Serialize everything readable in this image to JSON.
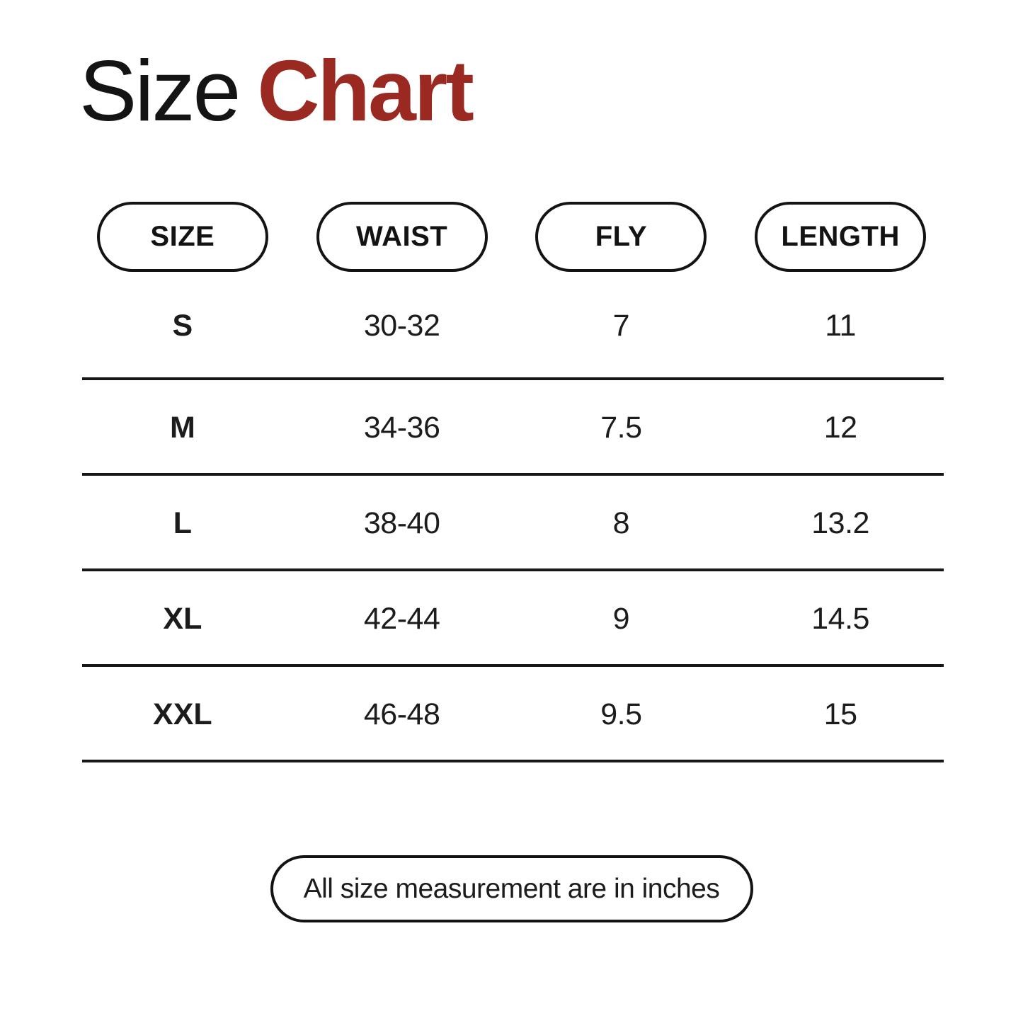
{
  "title": {
    "word_regular": "Size",
    "word_accent": "Chart"
  },
  "colors": {
    "accent_red": "#9a2a21",
    "text": "#141414",
    "line": "#161616",
    "background": "#ffffff"
  },
  "chart_data": {
    "type": "table",
    "title": "Size Chart",
    "columns": [
      "SIZE",
      "WAIST",
      "FLY",
      "LENGTH"
    ],
    "rows": [
      [
        "S",
        "30-32",
        "7",
        "11"
      ],
      [
        "M",
        "34-36",
        "7.5",
        "12"
      ],
      [
        "L",
        "38-40",
        "8",
        "13.2"
      ],
      [
        "XL",
        "42-44",
        "9",
        "14.5"
      ],
      [
        "XXL",
        "46-48",
        "9.5",
        "15"
      ]
    ],
    "units": "inches",
    "note": "All size measurement are in inches"
  },
  "footnote": {
    "label": "All size measurement are in inches"
  }
}
